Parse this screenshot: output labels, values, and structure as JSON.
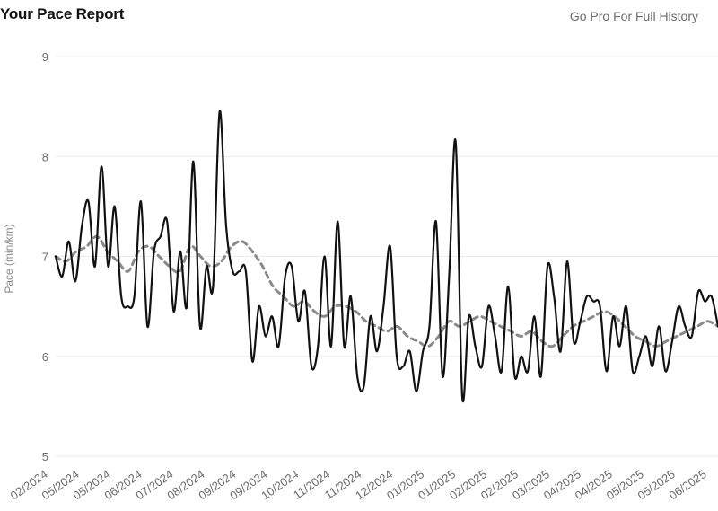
{
  "header": {
    "title": "Your Pace Report",
    "promo_link": "Go Pro For Full History"
  },
  "chart_data": {
    "type": "line",
    "title": "Your Pace Report",
    "ylabel": "Pace (min/km)",
    "xlabel": "",
    "ylim": [
      5,
      9
    ],
    "yticks": [
      5,
      6,
      7,
      8,
      9
    ],
    "grid": true,
    "xtick_labels": [
      "02/2024",
      "05/2024",
      "05/2024",
      "06/2024",
      "07/2024",
      "08/2024",
      "09/2024",
      "09/2024",
      "10/2024",
      "11/2024",
      "11/2024",
      "12/2024",
      "01/2025",
      "01/2025",
      "02/2025",
      "02/2025",
      "03/2025",
      "04/2025",
      "04/2025",
      "05/2025",
      "05/2025",
      "06/2025"
    ],
    "series": [
      {
        "values": [
          7.0,
          6.8,
          7.15,
          6.75,
          7.3,
          7.55,
          6.9,
          7.9,
          6.9,
          7.5,
          6.6,
          6.5,
          6.6,
          7.55,
          6.3,
          7.05,
          7.2,
          7.35,
          6.45,
          7.05,
          6.5,
          7.95,
          6.3,
          6.9,
          6.7,
          8.45,
          7.3,
          6.85,
          6.85,
          6.85,
          5.95,
          6.5,
          6.2,
          6.4,
          6.1,
          6.8,
          6.9,
          6.35,
          6.65,
          5.9,
          6.1,
          7.0,
          6.1,
          7.35,
          6.1,
          6.6,
          5.8,
          5.7,
          6.4,
          6.05,
          6.5,
          7.1,
          6.0,
          5.9,
          6.05,
          5.65,
          6.05,
          6.3,
          7.35,
          5.8,
          6.8,
          8.15,
          5.6,
          6.4,
          6.1,
          5.9,
          6.5,
          6.2,
          5.85,
          6.7,
          5.8,
          6.0,
          5.85,
          6.4,
          5.8,
          6.9,
          6.6,
          6.05,
          6.95,
          6.15,
          6.35,
          6.6,
          6.55,
          6.5,
          5.85,
          6.4,
          6.1,
          6.5,
          5.85,
          6.0,
          6.2,
          5.9,
          6.3,
          5.85,
          6.15,
          6.5,
          6.3,
          6.2,
          6.65,
          6.55,
          6.6,
          6.3
        ],
        "color": "#111111"
      },
      {
        "values": [
          7.0,
          6.95,
          7.05,
          7.1,
          7.2,
          7.05,
          6.95,
          6.85,
          7.05,
          7.1,
          7.0,
          6.9,
          6.85,
          7.1,
          7.0,
          6.9,
          6.95,
          7.1,
          7.15,
          7.05,
          6.9,
          6.7,
          6.6,
          6.5,
          6.55,
          6.45,
          6.4,
          6.5,
          6.5,
          6.45,
          6.35,
          6.3,
          6.25,
          6.3,
          6.2,
          6.15,
          6.1,
          6.2,
          6.35,
          6.3,
          6.35,
          6.4,
          6.35,
          6.3,
          6.25,
          6.2,
          6.25,
          6.15,
          6.1,
          6.2,
          6.3,
          6.35,
          6.4,
          6.45,
          6.4,
          6.3,
          6.2,
          6.15,
          6.1,
          6.15,
          6.2,
          6.25,
          6.3,
          6.35,
          6.3
        ],
        "color": "#8a8a8a",
        "style": "dashed"
      }
    ]
  }
}
